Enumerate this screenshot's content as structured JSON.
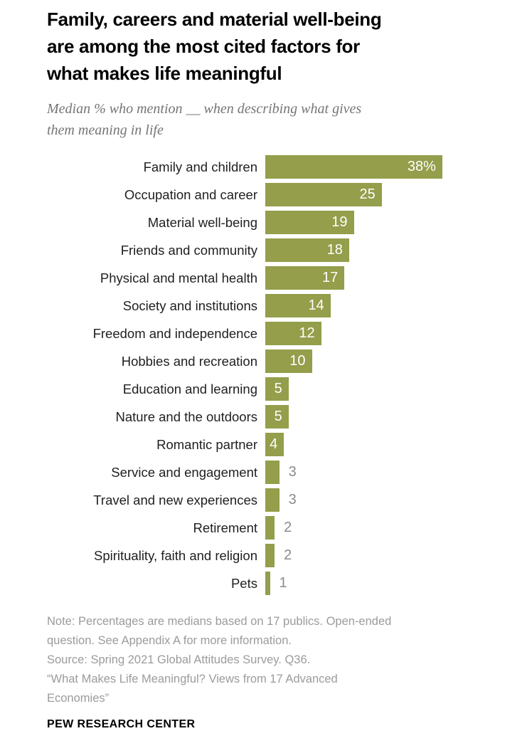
{
  "header": {
    "title": "Family, careers and material well-being are among the most cited factors for what makes life meaningful",
    "title_lines": [
      "Family, careers and material well-being",
      "are among the most cited factors for",
      "what makes life meaningful"
    ],
    "subtitle": "Median % who mention __ when describing what gives them meaning in life",
    "subtitle_lines": [
      "Median % who mention __ when describing what gives",
      "them meaning in life"
    ]
  },
  "chart_data": {
    "type": "bar",
    "orientation": "horizontal",
    "title": "Family, careers and material well-being are among the most cited factors for what makes life meaningful",
    "subtitle": "Median % who mention __ when describing what gives them meaning in life",
    "xlabel": "",
    "ylabel": "",
    "xlim": [
      0,
      42
    ],
    "grid": false,
    "legend": false,
    "categories": [
      "Family and children",
      "Occupation and career",
      "Material well-being",
      "Friends and community",
      "Physical and mental health",
      "Society and institutions",
      "Freedom and independence",
      "Hobbies and recreation",
      "Education and learning",
      "Nature and the outdoors",
      "Romantic partner",
      "Service and engagement",
      "Travel and new experiences",
      "Retirement",
      "Spirituality, faith and religion",
      "Pets"
    ],
    "values": [
      38,
      25,
      19,
      18,
      17,
      14,
      12,
      10,
      5,
      5,
      4,
      3,
      3,
      2,
      2,
      1
    ],
    "value_labels": [
      "38%",
      "25",
      "19",
      "18",
      "17",
      "14",
      "12",
      "10",
      "5",
      "5",
      "4",
      "3",
      "3",
      "2",
      "2",
      "1"
    ],
    "inside_label_min_value": 4,
    "bar_color": "#949e4b",
    "inside_label_color": "#ffffff",
    "outside_label_color": "#8b8b8b"
  },
  "footer": {
    "note": "Note: Percentages are medians based on 17 publics. Open-ended question. See Appendix A for more information. Source: Spring 2021 Global Attitudes Survey. Q36. “What Makes Life Meaningful? Views from 17 Advanced Economies”",
    "note_lines": [
      "Note: Percentages are medians based on 17 publics. Open-ended",
      "question. See Appendix A for more information.",
      "Source: Spring 2021 Global Attitudes Survey. Q36.",
      "“What Makes Life Meaningful? Views from 17 Advanced",
      "Economies”"
    ],
    "brand": "PEW RESEARCH CENTER"
  },
  "colors": {
    "bar": "#949e4b",
    "title": "#000000",
    "category_label": "#1f1f1f",
    "subtitle": "#757575",
    "note": "#9b9b9b",
    "inside_value": "#ffffff",
    "outside_value": "#8b8b8b",
    "background": "#ffffff"
  }
}
